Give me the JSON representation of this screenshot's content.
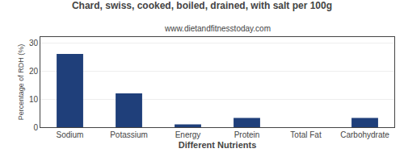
{
  "chart_data": {
    "type": "bar",
    "title": "Chard, swiss, cooked, boiled, drained, with salt per 100g",
    "subtitle": "www.dietandfitnesstoday.com",
    "xlabel": "Different Nutrients",
    "ylabel": "Percentage of RDH (%)",
    "categories": [
      "Sodium",
      "Potassium",
      "Energy",
      "Protein",
      "Total Fat",
      "Carbohydrate"
    ],
    "values": [
      26,
      12,
      1,
      3.3,
      0,
      3.3
    ],
    "color": "#1f3f7a",
    "ylim": [
      0,
      32
    ],
    "yticks": [
      0,
      10,
      20,
      30
    ],
    "grid": true
  }
}
